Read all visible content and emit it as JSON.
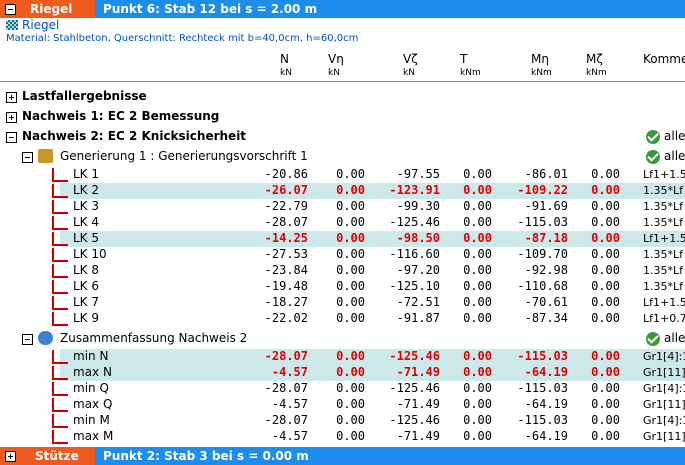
{
  "header_bar": {
    "section": "Riegel",
    "point": "Punkt 6: Stab 12 bei s = 2.00 m"
  },
  "member": {
    "name": "Riegel",
    "material": "Material: Stahlbeton,  Querschnitt: Rechteck mit b=40,0cm, h=60,0cm"
  },
  "columns": [
    {
      "name": "N",
      "unit": "kN"
    },
    {
      "name": "Vη",
      "unit": "kN"
    },
    {
      "name": "Vζ",
      "unit": "kN"
    },
    {
      "name": "T",
      "unit": "kNm"
    },
    {
      "name": "Mη",
      "unit": "kNm"
    },
    {
      "name": "Mζ",
      "unit": "kNm"
    },
    {
      "name": "Komme"
    }
  ],
  "tree": [
    {
      "label": "Lastfallergebnisse"
    },
    {
      "label": "Nachweis 1: EC 2 Bemessung"
    },
    {
      "label": "Nachweis 2: EC 2 Knicksicherheit",
      "status": "alle"
    }
  ],
  "groups": [
    {
      "label": "Generierung 1 : Generierungsvorschrift 1",
      "status": "alle",
      "rows": [
        {
          "name": "LK 1",
          "cells": [
            "-20.86",
            "0.00",
            "-97.55",
            "0.00",
            "-86.01",
            "0.00",
            "Lf1+1.5"
          ]
        },
        {
          "name": "LK 2",
          "highlight": true,
          "cells": [
            "-26.07",
            "0.00",
            "-123.91",
            "0.00",
            "-109.22",
            "0.00",
            "1.35*Lf"
          ]
        },
        {
          "name": "LK 3",
          "cells": [
            "-22.79",
            "0.00",
            "-99.30",
            "0.00",
            "-91.69",
            "0.00",
            "1.35*Lf"
          ]
        },
        {
          "name": "LK 4",
          "cells": [
            "-28.07",
            "0.00",
            "-125.46",
            "0.00",
            "-115.03",
            "0.00",
            "1.35*Lf"
          ]
        },
        {
          "name": "LK 5",
          "highlight": true,
          "cells": [
            "-14.25",
            "0.00",
            "-98.50",
            "0.00",
            "-87.18",
            "0.00",
            "Lf1+1.5"
          ]
        },
        {
          "name": "LK 10",
          "cells": [
            "-27.53",
            "0.00",
            "-116.60",
            "0.00",
            "-109.70",
            "0.00",
            "1.35*Lf"
          ]
        },
        {
          "name": "LK 8",
          "cells": [
            "-23.84",
            "0.00",
            "-97.20",
            "0.00",
            "-92.98",
            "0.00",
            "1.35*Lf"
          ]
        },
        {
          "name": "LK 6",
          "cells": [
            "-19.48",
            "0.00",
            "-125.10",
            "0.00",
            "-110.68",
            "0.00",
            "1.35*Lf"
          ]
        },
        {
          "name": "LK 7",
          "cells": [
            "-18.27",
            "0.00",
            "-72.51",
            "0.00",
            "-70.61",
            "0.00",
            "Lf1+1.5"
          ]
        },
        {
          "name": "LK 9",
          "cells": [
            "-22.02",
            "0.00",
            "-91.87",
            "0.00",
            "-87.34",
            "0.00",
            "Lf1+0.7"
          ]
        }
      ]
    },
    {
      "label": "Zusammenfassung Nachweis 2",
      "status": "alle",
      "rows": [
        {
          "name": "min N",
          "highlight": true,
          "cells": [
            "-28.07",
            "0.00",
            "-125.46",
            "0.00",
            "-115.03",
            "0.00",
            "Gr1[4]:1"
          ]
        },
        {
          "name": "max N",
          "highlight": true,
          "cells": [
            "-4.57",
            "0.00",
            "-71.49",
            "0.00",
            "-64.19",
            "0.00",
            "Gr1[11]:"
          ]
        },
        {
          "name": "min Q",
          "cells": [
            "-28.07",
            "0.00",
            "-125.46",
            "0.00",
            "-115.03",
            "0.00",
            "Gr1[4]:1"
          ]
        },
        {
          "name": "max Q",
          "cells": [
            "-4.57",
            "0.00",
            "-71.49",
            "0.00",
            "-64.19",
            "0.00",
            "Gr1[11]:"
          ]
        },
        {
          "name": "min M",
          "cells": [
            "-28.07",
            "0.00",
            "-125.46",
            "0.00",
            "-115.03",
            "0.00",
            "Gr1[4]:1"
          ]
        },
        {
          "name": "max M",
          "cells": [
            "-4.57",
            "0.00",
            "-71.49",
            "0.00",
            "-64.19",
            "0.00",
            "Gr1[11]:"
          ]
        }
      ]
    }
  ],
  "footer_bar": {
    "section": "Stütze",
    "point": "Punkt 2: Stab 3 bei s = 0.00 m"
  }
}
